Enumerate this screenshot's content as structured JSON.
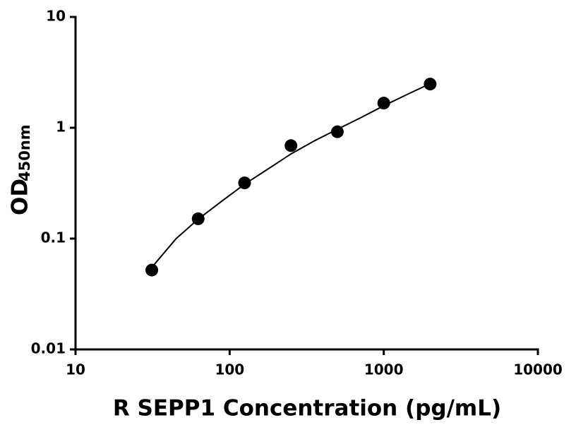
{
  "chart_data": {
    "type": "scatter",
    "x_label": "R SEPP1 Concentration (pg/mL)",
    "y_label": "OD",
    "y_label_sub": "450nm",
    "x_log": true,
    "y_log": true,
    "xlim": [
      10,
      10000
    ],
    "xticks": [
      10,
      100,
      1000,
      10000
    ],
    "ylim": [
      0.01,
      10
    ],
    "yticks": [
      0.01,
      0.1,
      1,
      10
    ],
    "color": "#000000",
    "x": [
      31.25,
      62.5,
      125,
      250,
      500,
      1000,
      2000
    ],
    "values": [
      0.052,
      0.151,
      0.318,
      0.69,
      0.92,
      1.67,
      2.48
    ],
    "fit": {
      "x": [
        31.25,
        45,
        62.5,
        90,
        125,
        180,
        250,
        360,
        500,
        700,
        1000,
        1400,
        2000
      ],
      "values": [
        0.055,
        0.1,
        0.15,
        0.22,
        0.31,
        0.43,
        0.58,
        0.77,
        0.97,
        1.22,
        1.58,
        1.98,
        2.5
      ]
    }
  }
}
